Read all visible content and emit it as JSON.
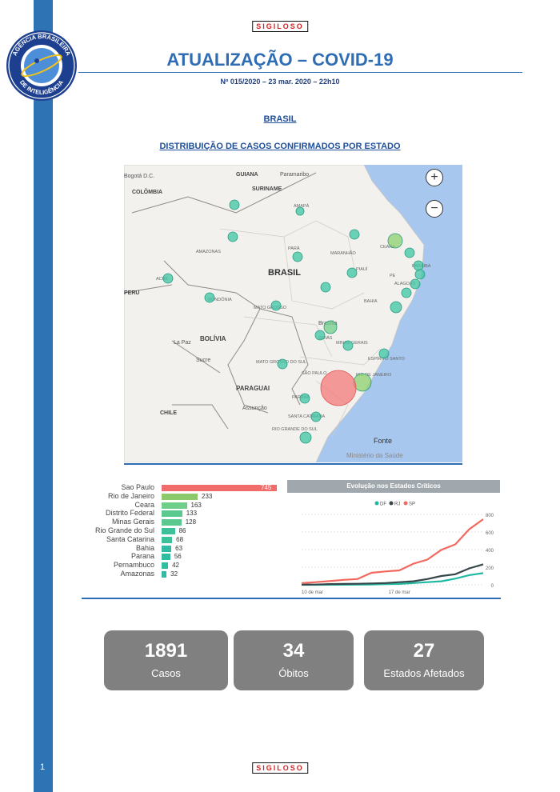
{
  "header": {
    "classification": "SIGILOSO",
    "title": "ATUALIZAÇÃO – COVID-19",
    "subtitle": "Nº 015/2020 – 23 mar. 2020 – 22h10",
    "logo_text_top": "AGÊNCIA BRASILEIRA",
    "logo_text_bottom": "DE INTELIGÊNCIA"
  },
  "sections": {
    "country": "BRASIL",
    "distribution": "DISTRIBUIÇÃO DE CASOS CONFIRMADOS POR ESTADO"
  },
  "map": {
    "country_labels": [
      "GUIANA",
      "SURINAME",
      "COLÔMBIA",
      "BRASIL",
      "PERU",
      "BOLÍVIA",
      "PARAGUAI",
      "CHILE"
    ],
    "city_labels": [
      "Bogotá D.C.",
      "Paramaribo",
      "La Paz",
      "Sucre",
      "Assunção",
      "Brasília"
    ],
    "state_labels": [
      "AMAPÁ",
      "AMAZONAS",
      "PARÁ",
      "MARANHÃO",
      "CEARÁ",
      "PIAUÍ",
      "PARAÍBA",
      "PE",
      "ALAGOAS",
      "ACRE",
      "RONDÔNIA",
      "MATO GROSSO",
      "BAHIA",
      "GOIÁS",
      "MINAS GERAIS",
      "ESPÍRITO SANTO",
      "MATO GROSSO DO SUL",
      "SÃO PAULO",
      "RIO DE JANEIRO",
      "PARANÁ",
      "SANTA CATARINA",
      "RIO GRANDE DO SUL"
    ],
    "source_label": "Fonte",
    "source_value": "Ministério da Saúde",
    "zoom_in": "+",
    "zoom_out": "−",
    "colors": {
      "water": "#a8c7ef",
      "land": "#f2f1ee",
      "bubble_large": "#f37a7a",
      "bubble": "#3cc6a4"
    }
  },
  "chart_data": [
    {
      "type": "bar",
      "categories": [
        "Sao Paulo",
        "Rio de Janeiro",
        "Ceara",
        "Distrito Federal",
        "Minas Gerais",
        "Rio Grande do Sul",
        "Santa Catarina",
        "Bahia",
        "Parana",
        "Pernambuco",
        "Amazonas"
      ],
      "values": [
        745,
        233,
        163,
        133,
        128,
        86,
        68,
        63,
        56,
        42,
        32
      ],
      "value_labels": [
        "745",
        "233",
        "163",
        "133",
        "128",
        "86",
        "68",
        "63",
        "56",
        "42",
        "32"
      ],
      "colors": [
        "#f26b6b",
        "#8cc96a",
        "#6fce8a",
        "#5bc98f",
        "#5bc98f",
        "#3dc19a",
        "#3dc19a",
        "#2fbd9f",
        "#2fbd9f",
        "#2fbd9f",
        "#2fbd9f"
      ],
      "xlim": [
        0,
        745
      ]
    },
    {
      "type": "line",
      "title": "Evolução nos Estados Críticos",
      "x": [
        "10 de mar",
        "11 de mar",
        "12 de mar",
        "13 de mar",
        "14 de mar",
        "15 de mar",
        "16 de mar",
        "17 de mar",
        "18 de mar",
        "19 de mar",
        "20 de mar",
        "21 de mar",
        "22 de mar",
        "23 de mar"
      ],
      "x_tick_labels": [
        "10 de mar",
        "17 de mar"
      ],
      "y_ticks": [
        "0",
        "200",
        "400",
        "600",
        "800"
      ],
      "ylim": [
        0,
        800
      ],
      "series": [
        {
          "name": "DF",
          "color": "#1fb9a1",
          "values": [
            0,
            0,
            1,
            1,
            2,
            4,
            8,
            10,
            20,
            30,
            40,
            70,
            110,
            133
          ]
        },
        {
          "name": "RJ",
          "color": "#374649",
          "values": [
            2,
            3,
            8,
            10,
            12,
            15,
            20,
            30,
            40,
            65,
            100,
            120,
            186,
            233
          ]
        },
        {
          "name": "SP",
          "color": "#f2685f",
          "values": [
            19,
            30,
            42,
            56,
            65,
            136,
            152,
            164,
            240,
            286,
            396,
            459,
            631,
            745
          ]
        }
      ]
    }
  ],
  "kpis": [
    {
      "value": "1891",
      "label": "Casos"
    },
    {
      "value": "34",
      "label": "Óbitos"
    },
    {
      "value": "27",
      "label": "Estados Afetados"
    }
  ],
  "footer": {
    "page_number": "1",
    "classification": "SIGILOSO"
  },
  "colors": {
    "sidebar": "#2e74b5",
    "title": "#2e6db4",
    "kpi_bg": "#808080",
    "stamp_text": "#d62020"
  }
}
